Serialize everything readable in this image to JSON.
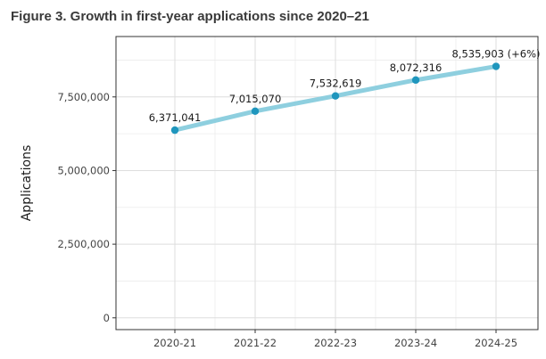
{
  "title": "Figure 3. Growth in first-year applications since 2020–21",
  "chart_data": {
    "type": "line",
    "title": "Figure 3. Growth in first-year applications since 2020–21",
    "xlabel": "",
    "ylabel": "Applications",
    "categories": [
      "2020-21",
      "2021-22",
      "2022-23",
      "2023-24",
      "2024-25"
    ],
    "series": [
      {
        "values": [
          6371041,
          7015070,
          7532619,
          8072316,
          8535903
        ],
        "labels": [
          "6,371,041",
          "7,015,070",
          "7,532,619",
          "8,072,316",
          "8,535,903 (+6%)"
        ]
      }
    ],
    "yticks": [
      0,
      2500000,
      5000000,
      7500000
    ],
    "ytick_labels": [
      "0",
      "2,500,000",
      "5,000,000",
      "7,500,000"
    ],
    "ylim": [
      -400000,
      9550000
    ],
    "grid": true,
    "line_color": "#8ecfdf",
    "marker_color": "#1f96bd"
  }
}
